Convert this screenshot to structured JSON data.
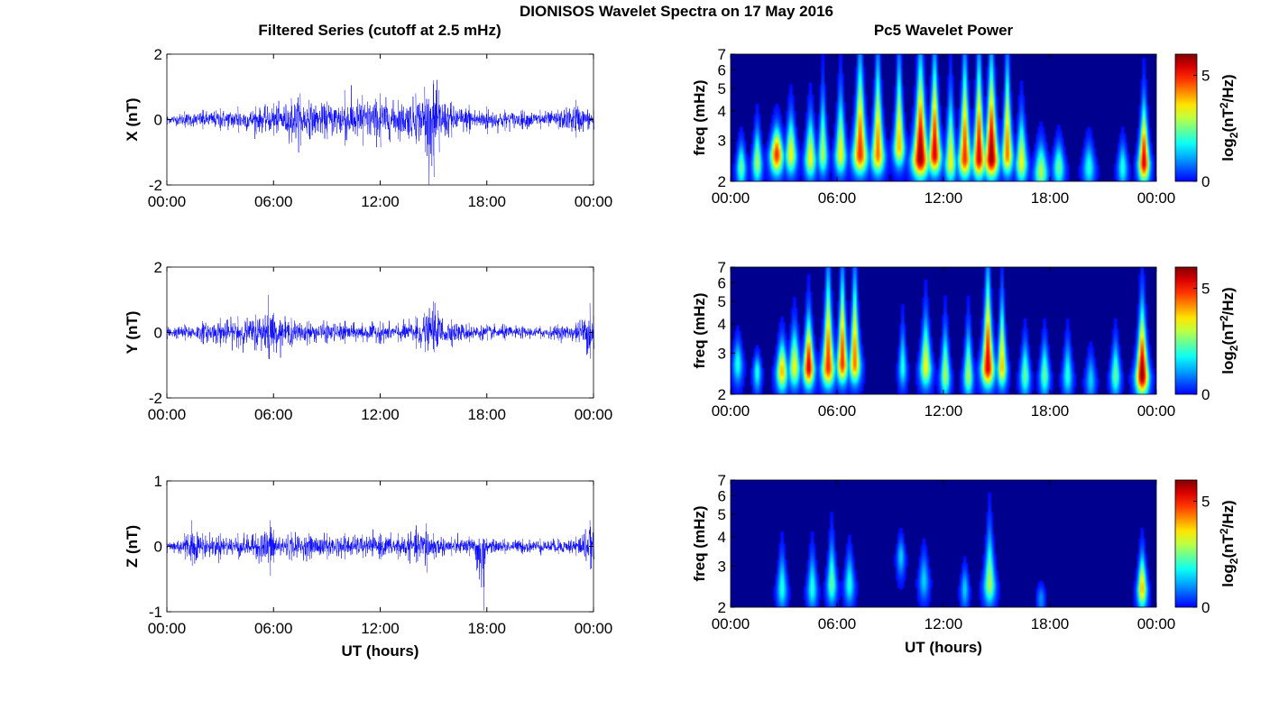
{
  "figure": {
    "title": "DIONISOS Wavelet Spectra on 17 May 2016",
    "left_column_title": "Filtered Series (cutoff at 2.5 mHz)",
    "right_column_title": "Pc5 Wavelet Power"
  },
  "chart_data": [
    {
      "type": "line",
      "panel": "X",
      "ylabel": "X (nT)",
      "xlabel": "",
      "xlim": [
        0,
        24
      ],
      "ylim": [
        -2,
        2
      ],
      "x_ticks": [
        0,
        6,
        12,
        18,
        24
      ],
      "x_tick_labels": [
        "00:00",
        "06:00",
        "12:00",
        "18:00",
        "00:00"
      ],
      "y_ticks": [
        -2,
        0,
        2
      ],
      "y_tick_labels": [
        "-2",
        "0",
        "2"
      ],
      "color": "#0000ff",
      "series": [
        {
          "x": [
            0,
            1,
            2,
            3,
            4,
            5,
            6,
            7,
            7.5,
            8,
            9,
            10,
            11,
            12,
            13,
            14,
            14.5,
            15,
            15.3,
            16,
            17,
            18,
            19,
            20,
            21,
            22,
            23,
            24
          ],
          "y_max": [
            0.15,
            0.25,
            0.3,
            0.35,
            0.4,
            0.4,
            0.5,
            0.65,
            0.8,
            0.6,
            0.55,
            0.9,
            0.75,
            0.8,
            0.6,
            0.8,
            1.0,
            1.2,
            0.9,
            0.55,
            0.45,
            0.4,
            0.3,
            0.3,
            0.3,
            0.3,
            0.6,
            0.3
          ],
          "y_min": [
            -0.15,
            -0.25,
            -0.3,
            -0.35,
            -0.4,
            -0.45,
            -0.5,
            -0.7,
            -0.8,
            -0.6,
            -0.6,
            -0.8,
            -0.8,
            -0.85,
            -0.6,
            -0.75,
            -1.0,
            -1.75,
            -1.0,
            -0.55,
            -0.45,
            -0.45,
            -0.35,
            -0.3,
            -0.3,
            -0.3,
            -0.55,
            -0.3
          ]
        }
      ]
    },
    {
      "type": "line",
      "panel": "Y",
      "ylabel": "Y (nT)",
      "xlabel": "",
      "xlim": [
        0,
        24
      ],
      "ylim": [
        -2,
        2
      ],
      "x_ticks": [
        0,
        6,
        12,
        18,
        24
      ],
      "x_tick_labels": [
        "00:00",
        "06:00",
        "12:00",
        "18:00",
        "00:00"
      ],
      "y_ticks": [
        -2,
        0,
        2
      ],
      "y_tick_labels": [
        "-2",
        "0",
        "2"
      ],
      "color": "#0000ff",
      "series": [
        {
          "x": [
            0,
            1,
            2,
            3,
            4,
            5,
            5.7,
            6,
            7,
            8,
            9,
            10,
            11,
            12,
            13,
            14,
            14.5,
            15,
            16,
            17,
            18,
            19,
            20,
            21,
            22,
            23,
            23.8,
            24
          ],
          "y_max": [
            0.2,
            0.25,
            0.35,
            0.45,
            0.5,
            0.55,
            1.15,
            0.6,
            0.45,
            0.35,
            0.35,
            0.35,
            0.3,
            0.35,
            0.3,
            0.5,
            0.6,
            0.95,
            0.4,
            0.3,
            0.25,
            0.25,
            0.2,
            0.2,
            0.25,
            0.3,
            0.9,
            0.5
          ],
          "y_min": [
            -0.2,
            -0.25,
            -0.35,
            -0.45,
            -0.5,
            -0.55,
            -0.8,
            -0.6,
            -0.45,
            -0.35,
            -0.35,
            -0.35,
            -0.3,
            -0.35,
            -0.3,
            -0.5,
            -0.6,
            -0.6,
            -0.4,
            -0.3,
            -0.25,
            -0.25,
            -0.2,
            -0.2,
            -0.25,
            -0.3,
            -0.8,
            -0.5
          ]
        }
      ]
    },
    {
      "type": "line",
      "panel": "Z",
      "ylabel": "Z (nT)",
      "xlabel": "UT (hours)",
      "xlim": [
        0,
        24
      ],
      "ylim": [
        -1,
        1
      ],
      "x_ticks": [
        0,
        6,
        12,
        18,
        24
      ],
      "x_tick_labels": [
        "00:00",
        "06:00",
        "12:00",
        "18:00",
        "00:00"
      ],
      "y_ticks": [
        -1,
        0,
        1
      ],
      "y_tick_labels": [
        "-1",
        "0",
        "1"
      ],
      "color": "#0000ff",
      "series": [
        {
          "x": [
            0,
            1,
            1.4,
            2,
            3,
            4,
            5,
            5.8,
            6,
            7,
            8,
            9,
            10,
            11,
            12,
            13,
            14,
            14.6,
            15,
            16,
            17,
            17.8,
            18,
            19,
            20,
            21,
            22,
            23,
            23.8,
            24
          ],
          "y_max": [
            0.1,
            0.2,
            0.4,
            0.2,
            0.2,
            0.2,
            0.2,
            0.4,
            0.25,
            0.22,
            0.2,
            0.2,
            0.2,
            0.18,
            0.2,
            0.2,
            0.25,
            0.35,
            0.2,
            0.15,
            0.15,
            0.12,
            0.12,
            0.12,
            0.12,
            0.12,
            0.12,
            0.15,
            0.4,
            0.2
          ],
          "y_min": [
            -0.1,
            -0.2,
            -0.3,
            -0.2,
            -0.2,
            -0.2,
            -0.2,
            -0.45,
            -0.25,
            -0.22,
            -0.2,
            -0.2,
            -0.2,
            -0.18,
            -0.2,
            -0.2,
            -0.25,
            -0.4,
            -0.2,
            -0.15,
            -0.15,
            -0.98,
            -0.12,
            -0.12,
            -0.12,
            -0.12,
            -0.12,
            -0.15,
            -0.35,
            -0.2
          ]
        }
      ]
    },
    {
      "type": "heatmap",
      "panel": "X",
      "ylabel": "freq (mHz)",
      "xlabel": "",
      "xlim": [
        0,
        24
      ],
      "ylim": [
        2,
        7
      ],
      "y_scale": "log",
      "x_ticks": [
        0,
        6,
        12,
        18,
        24
      ],
      "x_tick_labels": [
        "00:00",
        "06:00",
        "12:00",
        "18:00",
        "00:00"
      ],
      "y_ticks": [
        2,
        3,
        4,
        5,
        6,
        7
      ],
      "y_tick_labels": [
        "2",
        "3",
        "4",
        "5",
        "6",
        "7"
      ],
      "colorbar": {
        "label": "log2(nT2/Hz)",
        "label_base": "log",
        "label_sub": "2",
        "label_mid": "(nT",
        "label_sup": "2",
        "label_end": "/Hz)",
        "range": [
          0,
          6
        ],
        "ticks": [
          0,
          5
        ],
        "tick_labels": [
          "0",
          "5"
        ],
        "colormap": "jet"
      },
      "features": [
        {
          "t": 0.6,
          "f": 2.3,
          "power": 2.5,
          "width_h": 0.25,
          "top_f": 3.0
        },
        {
          "t": 1.5,
          "f": 2.4,
          "power": 3.0,
          "width_h": 0.25,
          "top_f": 3.5
        },
        {
          "t": 2.6,
          "f": 2.6,
          "power": 5.0,
          "width_h": 0.35,
          "top_f": 3.5
        },
        {
          "t": 3.4,
          "f": 2.6,
          "power": 3.5,
          "width_h": 0.3,
          "top_f": 4.0
        },
        {
          "t": 4.5,
          "f": 2.5,
          "power": 3.5,
          "width_h": 0.3,
          "top_f": 4.0
        },
        {
          "t": 5.2,
          "f": 2.6,
          "power": 3.0,
          "width_h": 0.25,
          "top_f": 5.0
        },
        {
          "t": 6.2,
          "f": 2.6,
          "power": 3.5,
          "width_h": 0.3,
          "top_f": 5.0
        },
        {
          "t": 7.3,
          "f": 2.6,
          "power": 5.0,
          "width_h": 0.4,
          "top_f": 7.0
        },
        {
          "t": 8.3,
          "f": 2.6,
          "power": 4.5,
          "width_h": 0.35,
          "top_f": 7.0
        },
        {
          "t": 9.5,
          "f": 2.8,
          "power": 4.0,
          "width_h": 0.3,
          "top_f": 7.0
        },
        {
          "t": 10.7,
          "f": 2.5,
          "power": 6.0,
          "width_h": 0.45,
          "top_f": 7.0
        },
        {
          "t": 11.5,
          "f": 2.6,
          "power": 5.5,
          "width_h": 0.35,
          "top_f": 7.0
        },
        {
          "t": 12.4,
          "f": 2.4,
          "power": 3.5,
          "width_h": 0.3,
          "top_f": 5.0
        },
        {
          "t": 13.2,
          "f": 2.5,
          "power": 5.0,
          "width_h": 0.35,
          "top_f": 7.0
        },
        {
          "t": 14.0,
          "f": 2.5,
          "power": 5.5,
          "width_h": 0.35,
          "top_f": 7.0
        },
        {
          "t": 14.7,
          "f": 2.5,
          "power": 6.0,
          "width_h": 0.4,
          "top_f": 7.0
        },
        {
          "t": 15.6,
          "f": 2.6,
          "power": 4.5,
          "width_h": 0.3,
          "top_f": 7.0
        },
        {
          "t": 16.4,
          "f": 2.4,
          "power": 3.5,
          "width_h": 0.3,
          "top_f": 4.0
        },
        {
          "t": 17.5,
          "f": 2.2,
          "power": 3.0,
          "width_h": 0.35,
          "top_f": 3.0
        },
        {
          "t": 18.5,
          "f": 2.3,
          "power": 2.5,
          "width_h": 0.3,
          "top_f": 3.0
        },
        {
          "t": 20.2,
          "f": 2.3,
          "power": 2.0,
          "width_h": 0.3,
          "top_f": 3.0
        },
        {
          "t": 22.1,
          "f": 2.3,
          "power": 2.0,
          "width_h": 0.25,
          "top_f": 3.0
        },
        {
          "t": 23.3,
          "f": 2.4,
          "power": 5.5,
          "width_h": 0.3,
          "top_f": 4.5
        }
      ]
    },
    {
      "type": "heatmap",
      "panel": "Y",
      "ylabel": "freq (mHz)",
      "xlabel": "",
      "xlim": [
        0,
        24
      ],
      "ylim": [
        2,
        7
      ],
      "y_scale": "log",
      "x_ticks": [
        0,
        6,
        12,
        18,
        24
      ],
      "x_tick_labels": [
        "00:00",
        "06:00",
        "12:00",
        "18:00",
        "00:00"
      ],
      "y_ticks": [
        2,
        3,
        4,
        5,
        6,
        7
      ],
      "y_tick_labels": [
        "2",
        "3",
        "4",
        "5",
        "6",
        "7"
      ],
      "colorbar": {
        "label": "log2(nT2/Hz)",
        "label_base": "log",
        "label_sub": "2",
        "label_mid": "(nT",
        "label_sup": "2",
        "label_end": "/Hz)",
        "range": [
          0,
          6
        ],
        "ticks": [
          0,
          5
        ],
        "tick_labels": [
          "0",
          "5"
        ],
        "colormap": "jet"
      },
      "features": [
        {
          "t": 0.4,
          "f": 2.7,
          "power": 2.0,
          "width_h": 0.25,
          "top_f": 3.5
        },
        {
          "t": 1.5,
          "f": 2.5,
          "power": 2.0,
          "width_h": 0.2,
          "top_f": 3.0
        },
        {
          "t": 2.9,
          "f": 2.5,
          "power": 4.0,
          "width_h": 0.3,
          "top_f": 3.5
        },
        {
          "t": 3.6,
          "f": 2.6,
          "power": 3.5,
          "width_h": 0.3,
          "top_f": 4.0
        },
        {
          "t": 4.4,
          "f": 2.6,
          "power": 5.5,
          "width_h": 0.3,
          "top_f": 4.5
        },
        {
          "t": 5.5,
          "f": 2.6,
          "power": 5.0,
          "width_h": 0.35,
          "top_f": 7.0
        },
        {
          "t": 6.3,
          "f": 2.7,
          "power": 5.0,
          "width_h": 0.3,
          "top_f": 7.0
        },
        {
          "t": 7.0,
          "f": 2.7,
          "power": 4.5,
          "width_h": 0.3,
          "top_f": 7.0
        },
        {
          "t": 9.7,
          "f": 2.6,
          "power": 2.0,
          "width_h": 0.2,
          "top_f": 4.0
        },
        {
          "t": 11.0,
          "f": 2.6,
          "power": 3.5,
          "width_h": 0.3,
          "top_f": 4.5
        },
        {
          "t": 12.1,
          "f": 2.4,
          "power": 3.0,
          "width_h": 0.25,
          "top_f": 4.0
        },
        {
          "t": 13.4,
          "f": 2.4,
          "power": 3.0,
          "width_h": 0.25,
          "top_f": 4.0
        },
        {
          "t": 14.5,
          "f": 2.6,
          "power": 5.5,
          "width_h": 0.35,
          "top_f": 7.0
        },
        {
          "t": 15.3,
          "f": 2.6,
          "power": 4.0,
          "width_h": 0.25,
          "top_f": 5.5
        },
        {
          "t": 16.6,
          "f": 2.4,
          "power": 2.5,
          "width_h": 0.25,
          "top_f": 3.5
        },
        {
          "t": 17.7,
          "f": 2.4,
          "power": 2.5,
          "width_h": 0.25,
          "top_f": 3.5
        },
        {
          "t": 19.0,
          "f": 2.4,
          "power": 2.0,
          "width_h": 0.25,
          "top_f": 3.5
        },
        {
          "t": 20.3,
          "f": 2.3,
          "power": 1.5,
          "width_h": 0.25,
          "top_f": 3.0
        },
        {
          "t": 21.7,
          "f": 2.4,
          "power": 2.5,
          "width_h": 0.25,
          "top_f": 3.5
        },
        {
          "t": 23.2,
          "f": 2.4,
          "power": 6.0,
          "width_h": 0.35,
          "top_f": 5.0
        }
      ]
    },
    {
      "type": "heatmap",
      "panel": "Z",
      "ylabel": "freq (mHz)",
      "xlabel": "UT (hours)",
      "xlim": [
        0,
        24
      ],
      "ylim": [
        2,
        7
      ],
      "y_scale": "log",
      "x_ticks": [
        0,
        6,
        12,
        18,
        24
      ],
      "x_tick_labels": [
        "00:00",
        "06:00",
        "12:00",
        "18:00",
        "00:00"
      ],
      "y_ticks": [
        2,
        3,
        4,
        5,
        6,
        7
      ],
      "y_tick_labels": [
        "2",
        "3",
        "4",
        "5",
        "6",
        "7"
      ],
      "colorbar": {
        "label": "log2(nT2/Hz)",
        "label_base": "log",
        "label_sub": "2",
        "label_mid": "(nT",
        "label_sup": "2",
        "label_end": "/Hz)",
        "range": [
          0,
          6
        ],
        "ticks": [
          0,
          5
        ],
        "tick_labels": [
          "0",
          "5"
        ],
        "colormap": "jet"
      },
      "features": [
        {
          "t": 2.9,
          "f": 2.4,
          "power": 2.0,
          "width_h": 0.25,
          "top_f": 3.5
        },
        {
          "t": 4.6,
          "f": 2.4,
          "power": 2.0,
          "width_h": 0.25,
          "top_f": 3.5
        },
        {
          "t": 5.7,
          "f": 2.5,
          "power": 2.5,
          "width_h": 0.25,
          "top_f": 4.0
        },
        {
          "t": 6.7,
          "f": 2.5,
          "power": 2.0,
          "width_h": 0.25,
          "top_f": 3.5
        },
        {
          "t": 9.6,
          "f": 3.3,
          "power": 1.5,
          "width_h": 0.2,
          "top_f": 4.0
        },
        {
          "t": 10.9,
          "f": 2.6,
          "power": 1.5,
          "width_h": 0.25,
          "top_f": 3.5
        },
        {
          "t": 13.2,
          "f": 2.4,
          "power": 1.5,
          "width_h": 0.2,
          "top_f": 3.0
        },
        {
          "t": 14.6,
          "f": 2.5,
          "power": 3.0,
          "width_h": 0.3,
          "top_f": 4.5
        },
        {
          "t": 17.5,
          "f": 2.2,
          "power": 1.0,
          "width_h": 0.2,
          "top_f": 2.5
        },
        {
          "t": 23.2,
          "f": 2.4,
          "power": 4.0,
          "width_h": 0.25,
          "top_f": 3.5
        }
      ]
    }
  ]
}
